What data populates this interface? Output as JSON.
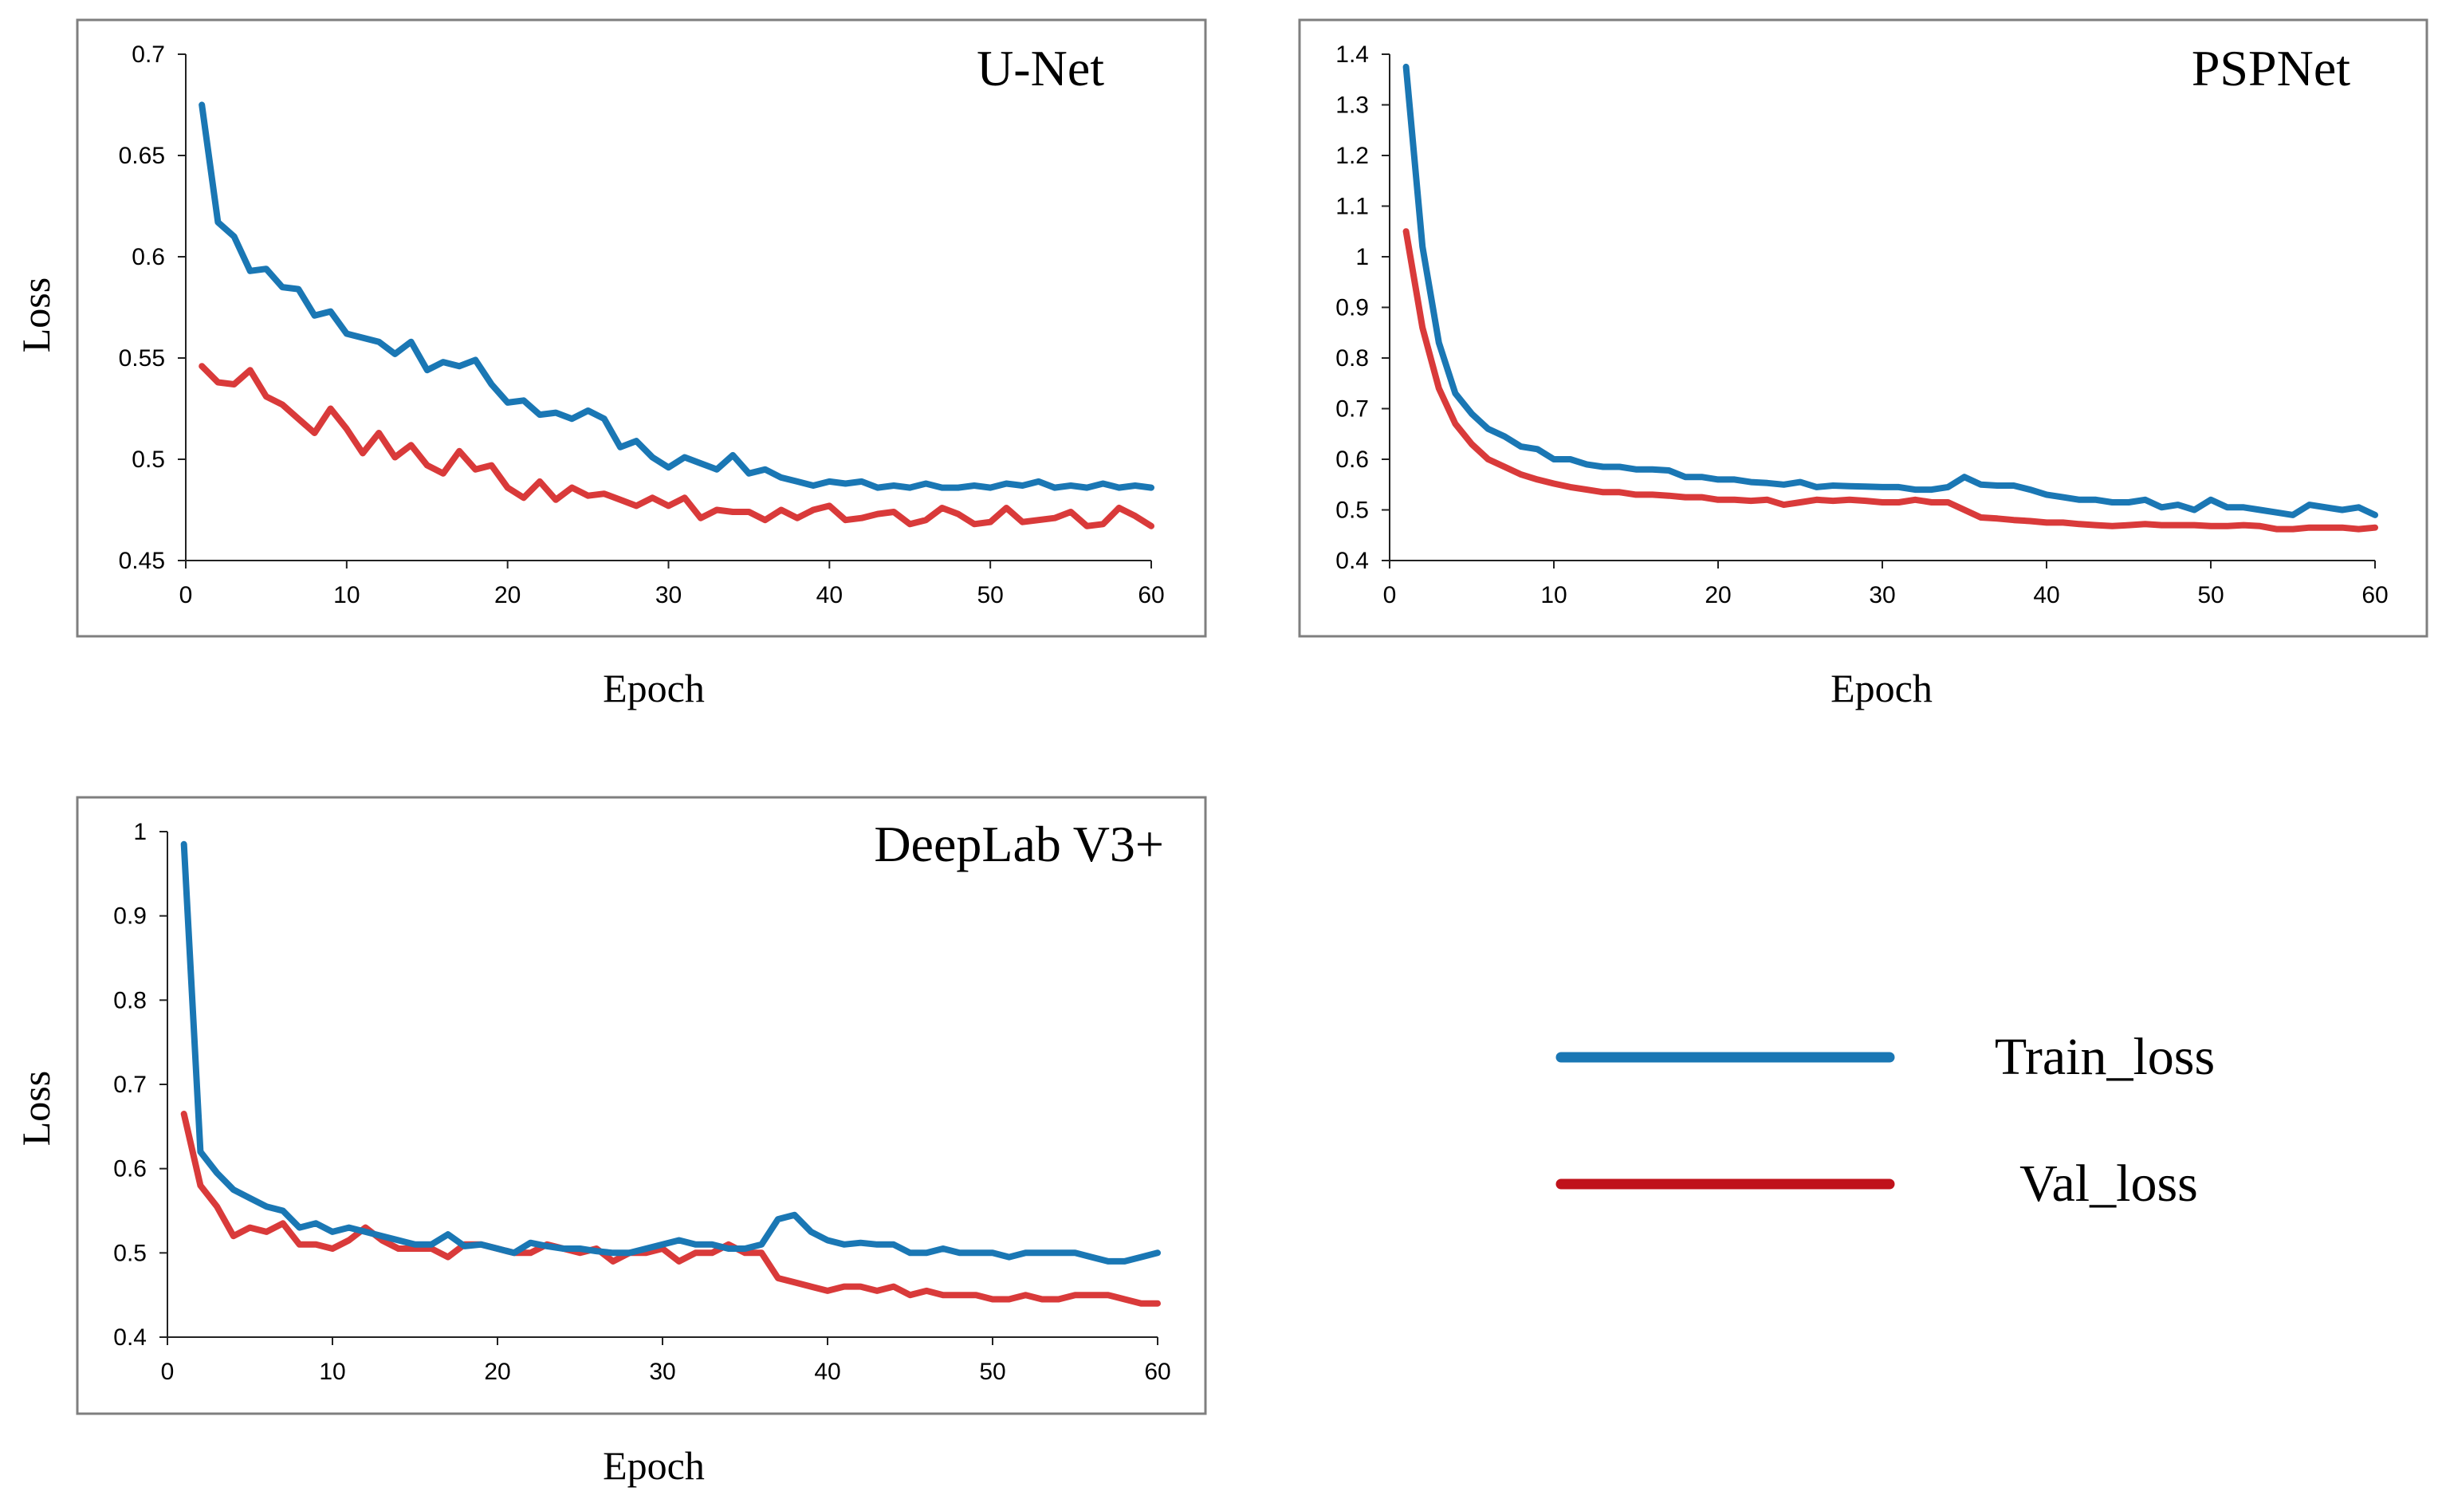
{
  "colors": {
    "train": "#1a77b4",
    "val": "#d93a3a",
    "legend_val": "#c0121b",
    "frame": "#7f7f7f",
    "axis": "#222222"
  },
  "legend": {
    "train_label": "Train_loss",
    "val_label": "Val_loss"
  },
  "chart_data": [
    {
      "type": "line",
      "title": "U-Net",
      "xlabel": "Epoch",
      "ylabel": "Loss",
      "xlim": [
        0,
        60
      ],
      "ylim": [
        0.45,
        0.7
      ],
      "xticks": [
        0,
        10,
        20,
        30,
        40,
        50,
        60
      ],
      "xtick_labels": [
        "0",
        "10",
        "20",
        "30",
        "40",
        "50",
        "60"
      ],
      "yticks": [
        0.45,
        0.5,
        0.55,
        0.6,
        0.65,
        0.7
      ],
      "ytick_labels": [
        "0.45",
        "0.5",
        "0.55",
        "0.6",
        "0.65",
        "0.7"
      ],
      "series": [
        {
          "name": "Train_loss",
          "x": [
            1,
            2,
            3,
            4,
            5,
            6,
            7,
            8,
            9,
            10,
            11,
            12,
            13,
            14,
            15,
            16,
            17,
            18,
            19,
            20,
            21,
            22,
            23,
            24,
            25,
            26,
            27,
            28,
            29,
            30,
            31,
            32,
            33,
            34,
            35,
            36,
            37,
            38,
            39,
            40,
            41,
            42,
            43,
            44,
            45,
            46,
            47,
            48,
            49,
            50,
            51,
            52,
            53,
            54,
            55,
            56,
            57,
            58,
            59,
            60
          ],
          "values": [
            0.675,
            0.617,
            0.61,
            0.593,
            0.594,
            0.585,
            0.584,
            0.571,
            0.573,
            0.562,
            0.56,
            0.558,
            0.552,
            0.558,
            0.544,
            0.548,
            0.546,
            0.549,
            0.537,
            0.528,
            0.529,
            0.522,
            0.523,
            0.52,
            0.524,
            0.52,
            0.506,
            0.509,
            0.501,
            0.496,
            0.501,
            0.498,
            0.495,
            0.502,
            0.493,
            0.495,
            0.491,
            0.489,
            0.487,
            0.489,
            0.488,
            0.489,
            0.486,
            0.487,
            0.486,
            0.488,
            0.486,
            0.486,
            0.487,
            0.486,
            0.488,
            0.487,
            0.489,
            0.486,
            0.487,
            0.486,
            0.488,
            0.486,
            0.487,
            0.486
          ]
        },
        {
          "name": "Val_loss",
          "x": [
            1,
            2,
            3,
            4,
            5,
            6,
            7,
            8,
            9,
            10,
            11,
            12,
            13,
            14,
            15,
            16,
            17,
            18,
            19,
            20,
            21,
            22,
            23,
            24,
            25,
            26,
            27,
            28,
            29,
            30,
            31,
            32,
            33,
            34,
            35,
            36,
            37,
            38,
            39,
            40,
            41,
            42,
            43,
            44,
            45,
            46,
            47,
            48,
            49,
            50,
            51,
            52,
            53,
            54,
            55,
            56,
            57,
            58,
            59,
            60
          ],
          "values": [
            0.546,
            0.538,
            0.537,
            0.544,
            0.531,
            0.527,
            0.52,
            0.513,
            0.525,
            0.515,
            0.503,
            0.513,
            0.501,
            0.507,
            0.497,
            0.493,
            0.504,
            0.495,
            0.497,
            0.486,
            0.481,
            0.489,
            0.48,
            0.486,
            0.482,
            0.483,
            0.48,
            0.477,
            0.481,
            0.477,
            0.481,
            0.471,
            0.475,
            0.474,
            0.474,
            0.47,
            0.475,
            0.471,
            0.475,
            0.477,
            0.47,
            0.471,
            0.473,
            0.474,
            0.468,
            0.47,
            0.476,
            0.473,
            0.468,
            0.469,
            0.476,
            0.469,
            0.47,
            0.471,
            0.474,
            0.467,
            0.468,
            0.476,
            0.472,
            0.467
          ]
        }
      ]
    },
    {
      "type": "line",
      "title": "PSPNet",
      "xlabel": "Epoch",
      "ylabel": "",
      "xlim": [
        0,
        60
      ],
      "ylim": [
        0.4,
        1.4
      ],
      "xticks": [
        0,
        10,
        20,
        30,
        40,
        50,
        60
      ],
      "xtick_labels": [
        "0",
        "10",
        "20",
        "30",
        "40",
        "50",
        "60"
      ],
      "yticks": [
        0.4,
        0.5,
        0.6,
        0.7,
        0.8,
        0.9,
        1.0,
        1.1,
        1.2,
        1.3,
        1.4
      ],
      "ytick_labels": [
        "0.4",
        "0.5",
        "0.6",
        "0.7",
        "0.8",
        "0.9",
        "1",
        "1.1",
        "1.2",
        "1.3",
        "1.4"
      ],
      "series": [
        {
          "name": "Train_loss",
          "x": [
            1,
            2,
            3,
            4,
            5,
            6,
            7,
            8,
            9,
            10,
            11,
            12,
            13,
            14,
            15,
            16,
            17,
            18,
            19,
            20,
            21,
            22,
            23,
            24,
            25,
            26,
            27,
            28,
            29,
            30,
            31,
            32,
            33,
            34,
            35,
            36,
            37,
            38,
            39,
            40,
            41,
            42,
            43,
            44,
            45,
            46,
            47,
            48,
            49,
            50,
            51,
            52,
            53,
            54,
            55,
            56,
            57,
            58,
            59,
            60
          ],
          "values": [
            1.375,
            1.02,
            0.83,
            0.73,
            0.69,
            0.66,
            0.645,
            0.625,
            0.62,
            0.6,
            0.6,
            0.59,
            0.585,
            0.585,
            0.58,
            0.58,
            0.578,
            0.565,
            0.565,
            0.56,
            0.56,
            0.555,
            0.553,
            0.55,
            0.555,
            0.545,
            0.548,
            0.547,
            0.546,
            0.545,
            0.545,
            0.54,
            0.54,
            0.545,
            0.565,
            0.55,
            0.548,
            0.548,
            0.54,
            0.53,
            0.525,
            0.52,
            0.52,
            0.515,
            0.515,
            0.52,
            0.505,
            0.51,
            0.5,
            0.52,
            0.505,
            0.505,
            0.5,
            0.495,
            0.49,
            0.51,
            0.505,
            0.5,
            0.505,
            0.49
          ]
        },
        {
          "name": "Val_loss",
          "x": [
            1,
            2,
            3,
            4,
            5,
            6,
            7,
            8,
            9,
            10,
            11,
            12,
            13,
            14,
            15,
            16,
            17,
            18,
            19,
            20,
            21,
            22,
            23,
            24,
            25,
            26,
            27,
            28,
            29,
            30,
            31,
            32,
            33,
            34,
            35,
            36,
            37,
            38,
            39,
            40,
            41,
            42,
            43,
            44,
            45,
            46,
            47,
            48,
            49,
            50,
            51,
            52,
            53,
            54,
            55,
            56,
            57,
            58,
            59,
            60
          ],
          "values": [
            1.05,
            0.86,
            0.74,
            0.67,
            0.63,
            0.6,
            0.585,
            0.57,
            0.56,
            0.552,
            0.545,
            0.54,
            0.535,
            0.535,
            0.53,
            0.53,
            0.528,
            0.525,
            0.525,
            0.52,
            0.52,
            0.518,
            0.52,
            0.51,
            0.515,
            0.52,
            0.518,
            0.52,
            0.518,
            0.515,
            0.515,
            0.52,
            0.515,
            0.515,
            0.5,
            0.485,
            0.483,
            0.48,
            0.478,
            0.475,
            0.475,
            0.472,
            0.47,
            0.468,
            0.47,
            0.472,
            0.47,
            0.47,
            0.47,
            0.468,
            0.468,
            0.47,
            0.468,
            0.462,
            0.462,
            0.465,
            0.465,
            0.465,
            0.462,
            0.465
          ]
        }
      ]
    },
    {
      "type": "line",
      "title": "DeepLab V3+",
      "xlabel": "Epoch",
      "ylabel": "Loss",
      "xlim": [
        0,
        60
      ],
      "ylim": [
        0.4,
        1.0
      ],
      "xticks": [
        0,
        10,
        20,
        30,
        40,
        50,
        60
      ],
      "xtick_labels": [
        "0",
        "10",
        "20",
        "30",
        "40",
        "50",
        "60"
      ],
      "yticks": [
        0.4,
        0.5,
        0.6,
        0.7,
        0.8,
        0.9,
        1.0
      ],
      "ytick_labels": [
        "0.4",
        "0.5",
        "0.6",
        "0.7",
        "0.8",
        "0.9",
        "1"
      ],
      "series": [
        {
          "name": "Train_loss",
          "x": [
            1,
            2,
            3,
            4,
            5,
            6,
            7,
            8,
            9,
            10,
            11,
            12,
            13,
            14,
            15,
            16,
            17,
            18,
            19,
            20,
            21,
            22,
            23,
            24,
            25,
            26,
            27,
            28,
            29,
            30,
            31,
            32,
            33,
            34,
            35,
            36,
            37,
            38,
            39,
            40,
            41,
            42,
            43,
            44,
            45,
            46,
            47,
            48,
            49,
            50,
            51,
            52,
            53,
            54,
            55,
            56,
            57,
            58,
            59,
            60
          ],
          "values": [
            0.985,
            0.62,
            0.595,
            0.575,
            0.565,
            0.555,
            0.55,
            0.53,
            0.535,
            0.525,
            0.53,
            0.525,
            0.52,
            0.515,
            0.51,
            0.51,
            0.522,
            0.508,
            0.51,
            0.505,
            0.5,
            0.512,
            0.508,
            0.505,
            0.505,
            0.502,
            0.5,
            0.5,
            0.505,
            0.51,
            0.515,
            0.51,
            0.51,
            0.505,
            0.505,
            0.51,
            0.54,
            0.545,
            0.525,
            0.515,
            0.51,
            0.512,
            0.51,
            0.51,
            0.5,
            0.5,
            0.505,
            0.5,
            0.5,
            0.5,
            0.495,
            0.5,
            0.5,
            0.5,
            0.5,
            0.495,
            0.49,
            0.49,
            0.495,
            0.5
          ]
        },
        {
          "name": "Val_loss",
          "x": [
            1,
            2,
            3,
            4,
            5,
            6,
            7,
            8,
            9,
            10,
            11,
            12,
            13,
            14,
            15,
            16,
            17,
            18,
            19,
            20,
            21,
            22,
            23,
            24,
            25,
            26,
            27,
            28,
            29,
            30,
            31,
            32,
            33,
            34,
            35,
            36,
            37,
            38,
            39,
            40,
            41,
            42,
            43,
            44,
            45,
            46,
            47,
            48,
            49,
            50,
            51,
            52,
            53,
            54,
            55,
            56,
            57,
            58,
            59,
            60
          ],
          "values": [
            0.665,
            0.58,
            0.555,
            0.52,
            0.53,
            0.525,
            0.535,
            0.51,
            0.51,
            0.505,
            0.515,
            0.53,
            0.515,
            0.505,
            0.505,
            0.505,
            0.495,
            0.51,
            0.51,
            0.505,
            0.5,
            0.5,
            0.51,
            0.505,
            0.5,
            0.505,
            0.49,
            0.5,
            0.5,
            0.505,
            0.49,
            0.5,
            0.5,
            0.51,
            0.5,
            0.5,
            0.47,
            0.465,
            0.46,
            0.455,
            0.46,
            0.46,
            0.455,
            0.46,
            0.45,
            0.455,
            0.45,
            0.45,
            0.45,
            0.445,
            0.445,
            0.45,
            0.445,
            0.445,
            0.45,
            0.45,
            0.45,
            0.445,
            0.44,
            0.44
          ]
        }
      ]
    }
  ]
}
